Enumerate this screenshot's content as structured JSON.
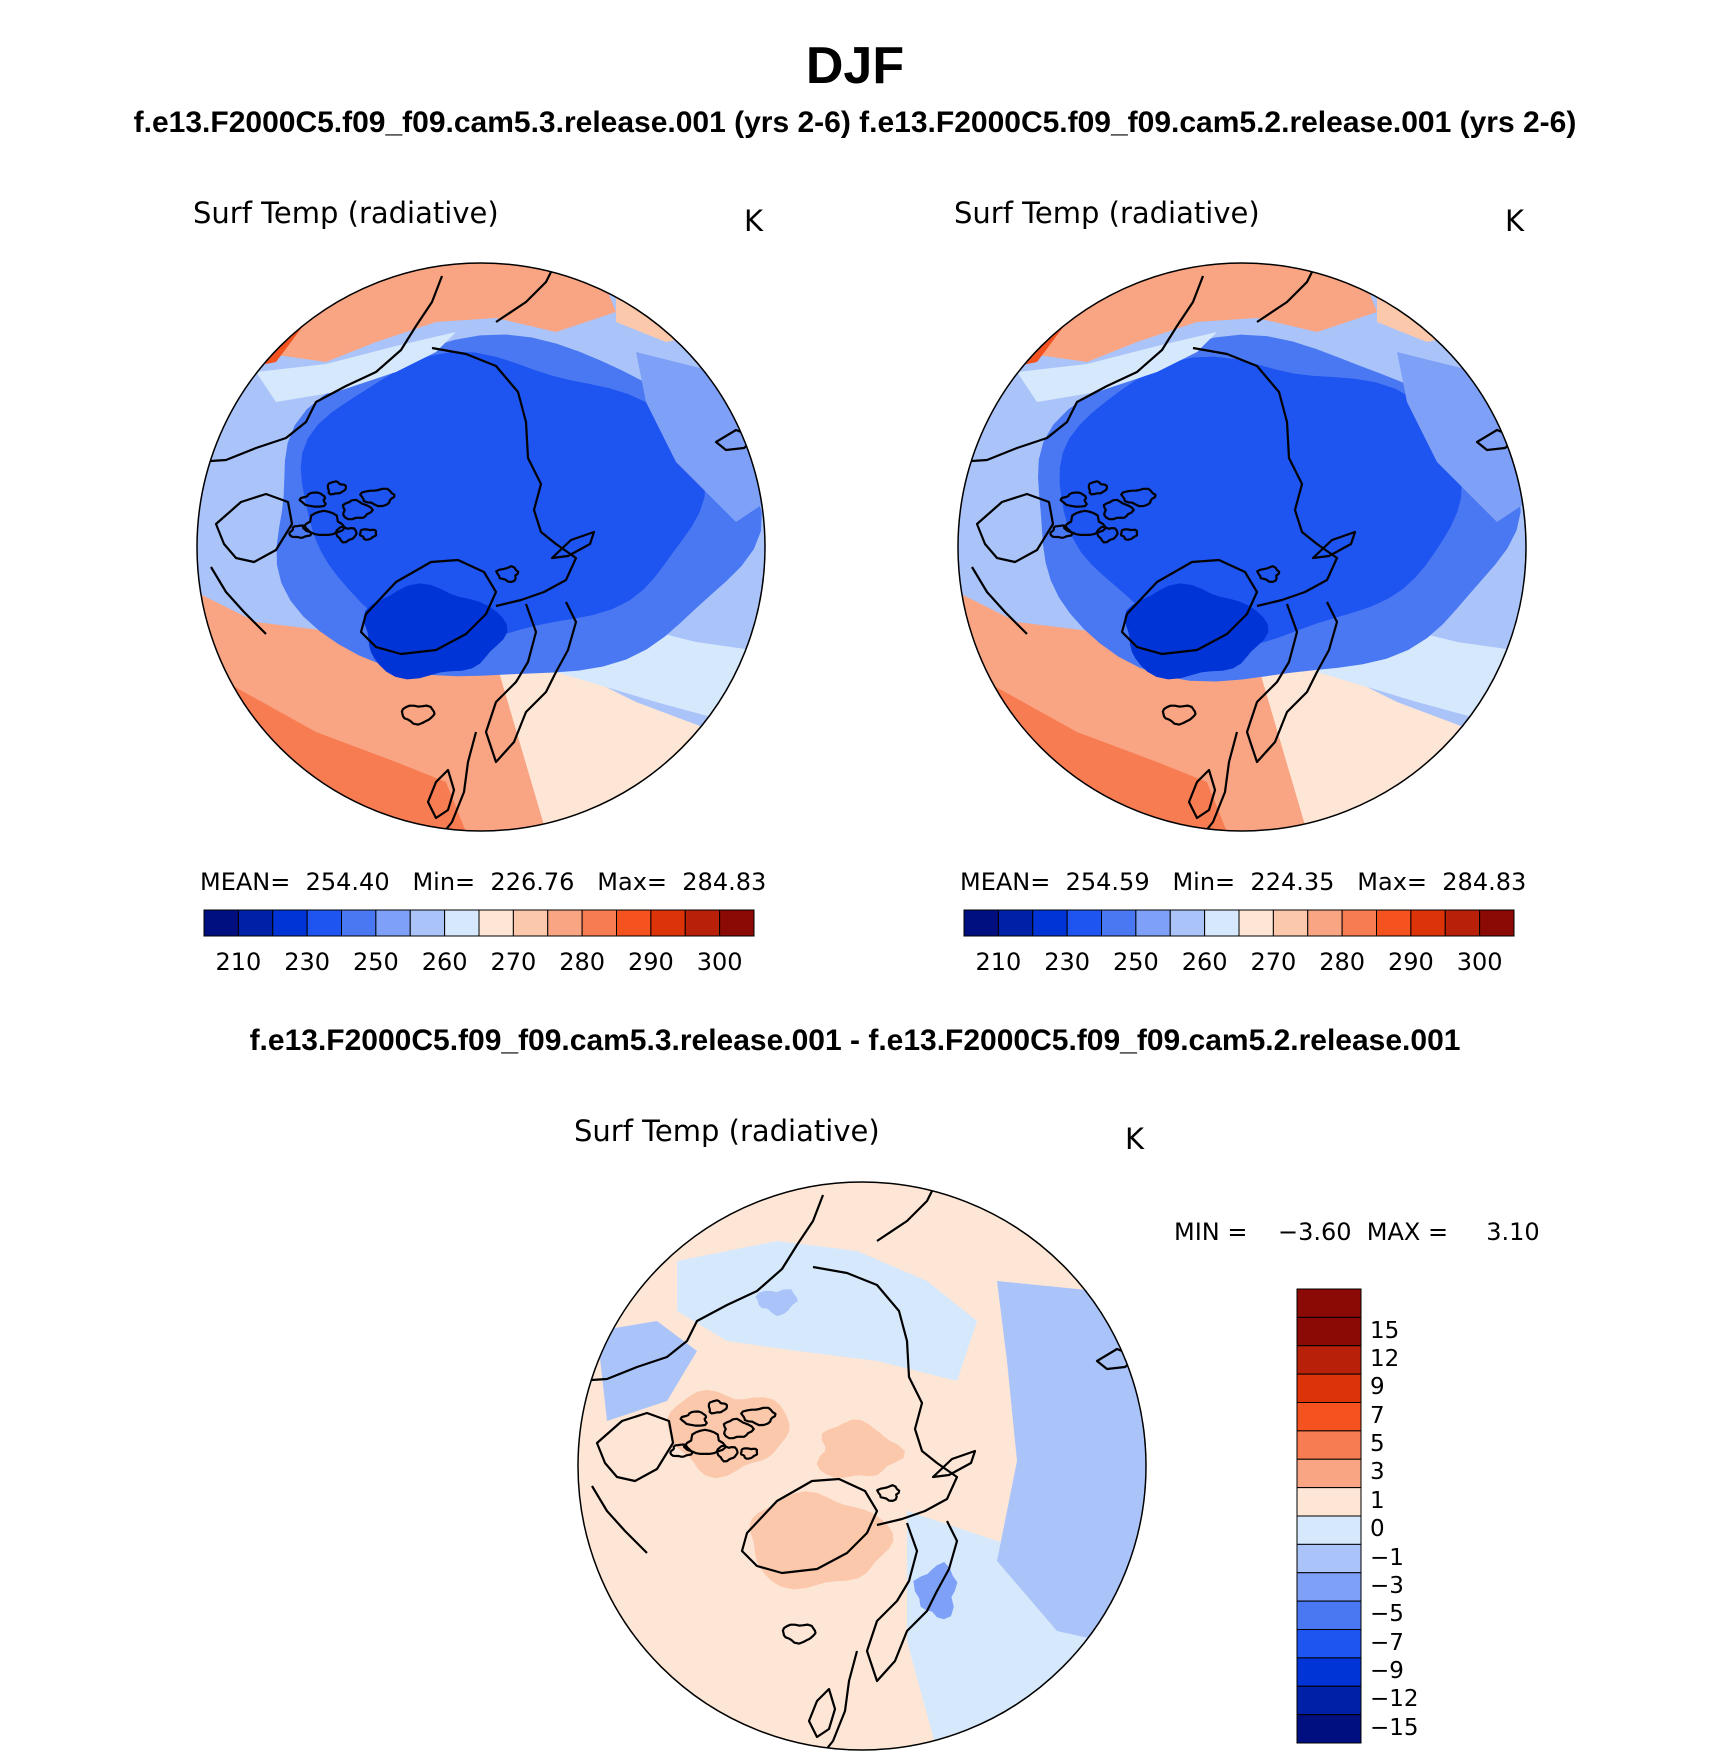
{
  "page": {
    "title": "DJF",
    "case_titles": "f.e13.F2000C5.f09_f09.cam5.3.release.001 (yrs 2-6)  f.e13.F2000C5.f09_f09.cam5.2.release.001 (yrs 2-6)",
    "diff_title": "f.e13.F2000C5.f09_f09.cam5.3.release.001 - f.e13.F2000C5.f09_f09.cam5.2.release.001"
  },
  "panels": [
    {
      "variable": "Surf Temp (radiative)",
      "units": "K",
      "stats": "MEAN=  254.40   Min=  226.76   Max=  284.83"
    },
    {
      "variable": "Surf Temp (radiative)",
      "units": "K",
      "stats": "MEAN=  254.59   Min=  224.35   Max=  284.83"
    }
  ],
  "diff_panel": {
    "variable": "Surf Temp (radiative)",
    "units": "K",
    "stats": "MIN =    −3.60  MAX =     3.10"
  },
  "colorbar_abs": {
    "colors": [
      "#000f7f",
      "#0020a8",
      "#0034d6",
      "#1e54f0",
      "#4a78f2",
      "#7ea0f6",
      "#aac4fa",
      "#d6e8fb",
      "#fde6d6",
      "#fcc8ac",
      "#f9a482",
      "#f87c52",
      "#f4521e",
      "#dc3408",
      "#b8200a",
      "#8c0a06"
    ],
    "tick_labels": [
      "210",
      "230",
      "250",
      "260",
      "270",
      "280",
      "290",
      "300"
    ]
  },
  "colorbar_diff": {
    "colors": [
      "#8c0a06",
      "#b8200a",
      "#dc3408",
      "#f4521e",
      "#f87c52",
      "#f9a482",
      "#fde6d6",
      "#d6e8fb",
      "#aac4fa",
      "#7ea0f6",
      "#4a78f2",
      "#1e54f0",
      "#0034d6",
      "#0020a8",
      "#000f7f"
    ],
    "tick_labels": [
      "15",
      "12",
      "9",
      "7",
      "5",
      "3",
      "1",
      "0",
      "−1",
      "−3",
      "−5",
      "−7",
      "−9",
      "−12",
      "−15"
    ]
  },
  "map_colors": {
    "warm_deep": "#f4521e",
    "warm_mid": "#f87c52",
    "warm": "#f9a482",
    "warm_light": "#fcc8ac",
    "near_zero_warm": "#fde6d6",
    "near_zero_cold": "#d6e8fb",
    "cold_light": "#aac4fa",
    "cold_mid": "#7ea0f6",
    "cold": "#4a78f2",
    "cold_deep": "#1e54f0",
    "cold_deeper": "#0034d6",
    "coast": "#000000"
  }
}
